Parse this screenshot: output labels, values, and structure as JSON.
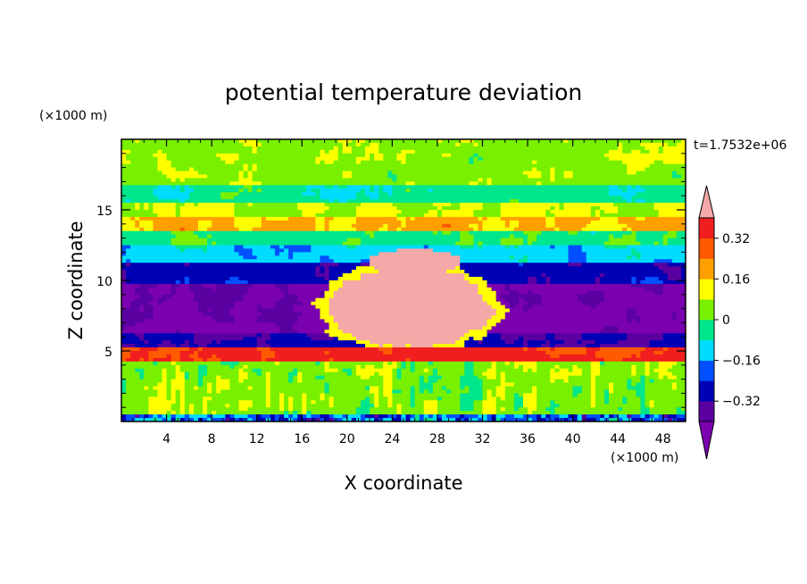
{
  "chart_data": {
    "type": "heatmap",
    "title": "potential temperature deviation",
    "xlabel": "X coordinate",
    "ylabel": "Z coordinate",
    "x_unit": "(×1000 m)",
    "y_unit": "(×1000 m)",
    "time_label": "t=1.7532e+06",
    "xlim": [
      0,
      50
    ],
    "ylim": [
      0,
      20
    ],
    "x_ticks": [
      "4",
      "8",
      "12",
      "16",
      "20",
      "24",
      "28",
      "32",
      "36",
      "40",
      "44",
      "48"
    ],
    "x_tick_values": [
      4,
      8,
      12,
      16,
      20,
      24,
      28,
      32,
      36,
      40,
      44,
      48
    ],
    "y_ticks": [
      "5",
      "10",
      "15"
    ],
    "y_tick_values": [
      5,
      10,
      15
    ],
    "colorbar": {
      "levels": [
        -0.4,
        -0.32,
        -0.24,
        -0.16,
        -0.08,
        0,
        0.08,
        0.16,
        0.24,
        0.32,
        0.4
      ],
      "colors": [
        "#5a00a0",
        "#0000b4",
        "#0050ff",
        "#00dcff",
        "#00e68c",
        "#78f000",
        "#ffff00",
        "#ffa000",
        "#ff5a00",
        "#f01e1e"
      ],
      "under_color": "#7a00b0",
      "over_color": "#f4a8a8",
      "tick_labels": [
        "0.32",
        "0.16",
        "0",
        "−0.16",
        "−0.32"
      ],
      "tick_values": [
        0.32,
        0.16,
        0,
        -0.16,
        -0.32
      ]
    }
  }
}
